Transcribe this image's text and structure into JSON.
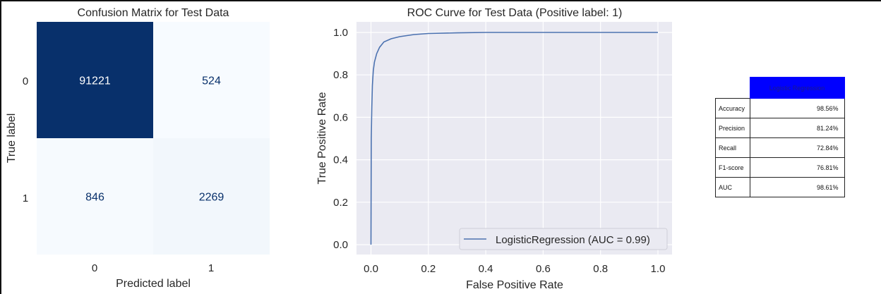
{
  "chart_data": [
    {
      "type": "heatmap",
      "title": "Confusion Matrix for Test Data",
      "xlabel": "Predicted label",
      "ylabel": "True label",
      "x_categories": [
        "0",
        "1"
      ],
      "y_categories": [
        "0",
        "1"
      ],
      "values": [
        [
          91221,
          524
        ],
        [
          846,
          2269
        ]
      ],
      "colormap": "Blues",
      "colors": {
        "high": "#08306b",
        "low": "#f7fbff",
        "text_dark_cell": "#ffffff",
        "text_light_cell": "#08306b"
      }
    },
    {
      "type": "line",
      "title": "ROC Curve for Test Data (Positive label: 1)",
      "xlabel": "False Positive Rate",
      "ylabel": "True Positive Rate",
      "xlim": [
        -0.05,
        1.05
      ],
      "ylim": [
        -0.05,
        1.05
      ],
      "xticks": [
        "0.0",
        "0.2",
        "0.4",
        "0.6",
        "0.8",
        "1.0"
      ],
      "yticks": [
        "0.0",
        "0.2",
        "0.4",
        "0.6",
        "0.8",
        "1.0"
      ],
      "grid": true,
      "legend_position": "bottom-right",
      "series": [
        {
          "name": "LogisticRegression (AUC = 0.99)",
          "color": "#4c72b0",
          "x": [
            0.0,
            0.001,
            0.003,
            0.005,
            0.008,
            0.012,
            0.02,
            0.03,
            0.045,
            0.07,
            0.1,
            0.15,
            0.2,
            0.3,
            0.4,
            0.6,
            0.8,
            1.0
          ],
          "y": [
            0.0,
            0.5,
            0.65,
            0.75,
            0.82,
            0.86,
            0.9,
            0.93,
            0.955,
            0.97,
            0.98,
            0.99,
            0.995,
            0.998,
            1.0,
            1.0,
            1.0,
            1.0
          ]
        }
      ]
    }
  ],
  "metrics_table": {
    "header": "Logistic Regression",
    "header_color": "#0000ff",
    "rows": [
      {
        "label": "Accuracy",
        "value": "98.56%"
      },
      {
        "label": "Precision",
        "value": "81.24%"
      },
      {
        "label": "Recall",
        "value": "72.84%"
      },
      {
        "label": "F1-score",
        "value": "76.81%"
      },
      {
        "label": "AUC",
        "value": "98.61%"
      }
    ]
  }
}
